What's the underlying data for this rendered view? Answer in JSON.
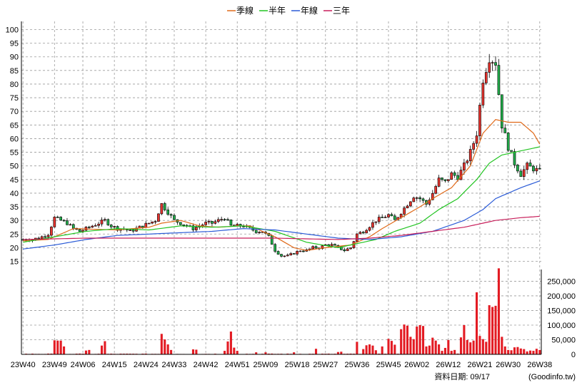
{
  "legend": [
    {
      "name": "季線",
      "color": "#e06a1a"
    },
    {
      "name": "半年",
      "color": "#22c422"
    },
    {
      "name": "年線",
      "color": "#2a5bd7"
    },
    {
      "name": "三年",
      "color": "#c81e5a"
    }
  ],
  "footer": {
    "date_label": "資料日期: 09/17",
    "source": "(Goodinfo.tw)"
  },
  "colors": {
    "up": "#e8332e",
    "down": "#22b14c",
    "volume": "#e31b23",
    "grid": "#9a9a9a"
  },
  "chart_data": {
    "type": "candlestick",
    "x_ticks": [
      "23W40",
      "23W49",
      "24W06",
      "24W15",
      "24W24",
      "24W33",
      "24W42",
      "24W51",
      "25W09",
      "25W18",
      "25W27",
      "25W36",
      "25W45",
      "26W02",
      "26W12",
      "26W21",
      "26W30",
      "26W38"
    ],
    "price_axis": {
      "range": [
        12,
        103
      ],
      "ticks": [
        15,
        20,
        25,
        30,
        35,
        40,
        45,
        50,
        55,
        60,
        65,
        70,
        75,
        80,
        85,
        90,
        95,
        100
      ],
      "grid": true
    },
    "volume_axis": {
      "range": [
        0,
        290000
      ],
      "ticks": [
        0,
        50000,
        100000,
        150000,
        200000,
        250000
      ],
      "tick_labels": [
        "0",
        "50,000",
        "100,000",
        "150,000",
        "200,000",
        "250,000"
      ]
    },
    "price_anchors": [
      [
        0,
        23
      ],
      [
        3,
        23
      ],
      [
        6,
        24
      ],
      [
        8,
        25
      ],
      [
        10,
        31
      ],
      [
        12,
        30
      ],
      [
        14,
        29
      ],
      [
        16,
        27
      ],
      [
        18,
        26
      ],
      [
        20,
        27
      ],
      [
        22,
        28
      ],
      [
        24,
        29
      ],
      [
        26,
        30
      ],
      [
        28,
        28
      ],
      [
        30,
        27
      ],
      [
        32,
        27
      ],
      [
        34,
        26
      ],
      [
        36,
        27
      ],
      [
        38,
        28
      ],
      [
        40,
        29
      ],
      [
        42,
        30
      ],
      [
        44,
        36
      ],
      [
        46,
        33
      ],
      [
        48,
        30
      ],
      [
        50,
        29
      ],
      [
        52,
        28
      ],
      [
        54,
        27
      ],
      [
        56,
        28
      ],
      [
        58,
        29
      ],
      [
        60,
        29
      ],
      [
        62,
        30
      ],
      [
        64,
        31
      ],
      [
        66,
        28
      ],
      [
        68,
        28
      ],
      [
        70,
        28
      ],
      [
        72,
        27
      ],
      [
        74,
        26
      ],
      [
        76,
        26
      ],
      [
        78,
        24
      ],
      [
        80,
        19
      ],
      [
        82,
        17
      ],
      [
        84,
        17
      ],
      [
        86,
        18
      ],
      [
        88,
        19
      ],
      [
        90,
        19
      ],
      [
        92,
        20
      ],
      [
        94,
        20
      ],
      [
        96,
        21
      ],
      [
        98,
        21
      ],
      [
        100,
        20
      ],
      [
        102,
        19
      ],
      [
        104,
        20
      ],
      [
        106,
        25
      ],
      [
        108,
        26
      ],
      [
        110,
        28
      ],
      [
        112,
        30
      ],
      [
        114,
        31
      ],
      [
        116,
        32
      ],
      [
        118,
        30
      ],
      [
        120,
        33
      ],
      [
        122,
        36
      ],
      [
        124,
        39
      ],
      [
        126,
        38
      ],
      [
        128,
        36
      ],
      [
        130,
        40
      ],
      [
        132,
        45
      ],
      [
        134,
        44
      ],
      [
        136,
        47
      ],
      [
        138,
        46
      ],
      [
        140,
        50
      ],
      [
        142,
        55
      ],
      [
        144,
        62
      ],
      [
        146,
        82
      ],
      [
        148,
        90
      ],
      [
        150,
        88
      ],
      [
        152,
        65
      ],
      [
        154,
        57
      ],
      [
        156,
        51
      ],
      [
        158,
        47
      ],
      [
        160,
        50
      ],
      [
        162,
        49
      ],
      [
        164,
        48
      ]
    ],
    "volume_bars": [
      [
        10,
        48000
      ],
      [
        11,
        47000
      ],
      [
        12,
        47000
      ],
      [
        13,
        27000
      ],
      [
        20,
        13000
      ],
      [
        21,
        15000
      ],
      [
        25,
        30000
      ],
      [
        26,
        45000
      ],
      [
        44,
        70000
      ],
      [
        45,
        51000
      ],
      [
        46,
        34000
      ],
      [
        47,
        15000
      ],
      [
        54,
        17000
      ],
      [
        55,
        16000
      ],
      [
        64,
        12000
      ],
      [
        65,
        44000
      ],
      [
        66,
        78000
      ],
      [
        67,
        23000
      ],
      [
        68,
        12000
      ],
      [
        74,
        7000
      ],
      [
        77,
        7000
      ],
      [
        86,
        7000
      ],
      [
        93,
        19000
      ],
      [
        100,
        8000
      ],
      [
        101,
        9000
      ],
      [
        106,
        43000
      ],
      [
        108,
        18000
      ],
      [
        109,
        31000
      ],
      [
        110,
        34000
      ],
      [
        111,
        30000
      ],
      [
        112,
        14000
      ],
      [
        114,
        27000
      ],
      [
        116,
        53000
      ],
      [
        117,
        46000
      ],
      [
        118,
        33000
      ],
      [
        120,
        86000
      ],
      [
        121,
        102000
      ],
      [
        122,
        98000
      ],
      [
        123,
        60000
      ],
      [
        124,
        52000
      ],
      [
        125,
        95000
      ],
      [
        126,
        100000
      ],
      [
        127,
        97000
      ],
      [
        128,
        27000
      ],
      [
        129,
        30000
      ],
      [
        130,
        57000
      ],
      [
        131,
        47000
      ],
      [
        132,
        34000
      ],
      [
        133,
        12000
      ],
      [
        134,
        22000
      ],
      [
        135,
        49000
      ],
      [
        136,
        12000
      ],
      [
        137,
        15000
      ],
      [
        139,
        58000
      ],
      [
        140,
        100000
      ],
      [
        141,
        49000
      ],
      [
        142,
        41000
      ],
      [
        143,
        47000
      ],
      [
        144,
        212000
      ],
      [
        145,
        63000
      ],
      [
        146,
        52000
      ],
      [
        147,
        43000
      ],
      [
        148,
        168000
      ],
      [
        149,
        162000
      ],
      [
        150,
        166000
      ],
      [
        151,
        294000
      ],
      [
        152,
        60000
      ],
      [
        153,
        27000
      ],
      [
        154,
        15000
      ],
      [
        155,
        14000
      ],
      [
        156,
        24000
      ],
      [
        157,
        25000
      ],
      [
        158,
        20000
      ],
      [
        159,
        18000
      ],
      [
        160,
        10000
      ],
      [
        161,
        13000
      ],
      [
        162,
        12000
      ],
      [
        163,
        19000
      ],
      [
        164,
        15000
      ]
    ],
    "ma_quarter": [
      [
        0,
        22.5
      ],
      [
        8,
        23
      ],
      [
        16,
        27
      ],
      [
        30,
        26.5
      ],
      [
        40,
        27.5
      ],
      [
        44,
        29
      ],
      [
        50,
        30
      ],
      [
        56,
        28
      ],
      [
        62,
        27.5
      ],
      [
        68,
        28
      ],
      [
        72,
        28
      ],
      [
        76,
        26
      ],
      [
        80,
        24
      ],
      [
        86,
        20
      ],
      [
        90,
        19
      ],
      [
        96,
        20
      ],
      [
        100,
        20.5
      ],
      [
        104,
        21
      ],
      [
        110,
        24
      ],
      [
        114,
        27
      ],
      [
        120,
        31
      ],
      [
        126,
        35
      ],
      [
        130,
        38
      ],
      [
        136,
        42
      ],
      [
        142,
        50
      ],
      [
        146,
        62
      ],
      [
        150,
        67
      ],
      [
        154,
        66
      ],
      [
        158,
        66
      ],
      [
        162,
        62
      ],
      [
        164,
        58
      ]
    ],
    "ma_half": [
      [
        0,
        22
      ],
      [
        10,
        24
      ],
      [
        20,
        26
      ],
      [
        30,
        27
      ],
      [
        40,
        26.5
      ],
      [
        50,
        28
      ],
      [
        60,
        27.5
      ],
      [
        70,
        28
      ],
      [
        80,
        26
      ],
      [
        90,
        22
      ],
      [
        100,
        20
      ],
      [
        104,
        21
      ],
      [
        112,
        23
      ],
      [
        118,
        26
      ],
      [
        126,
        29
      ],
      [
        132,
        34
      ],
      [
        138,
        38
      ],
      [
        144,
        45
      ],
      [
        148,
        51
      ],
      [
        152,
        54
      ],
      [
        156,
        55
      ],
      [
        160,
        56
      ],
      [
        164,
        57
      ]
    ],
    "ma_year": [
      [
        0,
        19.5
      ],
      [
        10,
        21
      ],
      [
        20,
        23
      ],
      [
        30,
        24.5
      ],
      [
        40,
        25
      ],
      [
        50,
        25.5
      ],
      [
        60,
        26
      ],
      [
        70,
        27
      ],
      [
        80,
        26.5
      ],
      [
        90,
        25
      ],
      [
        100,
        23.5
      ],
      [
        110,
        23
      ],
      [
        120,
        24
      ],
      [
        130,
        26
      ],
      [
        140,
        30
      ],
      [
        146,
        34
      ],
      [
        150,
        38
      ],
      [
        154,
        40
      ],
      [
        158,
        42
      ],
      [
        164,
        44.5
      ]
    ],
    "ma_3year": [
      [
        0,
        23
      ],
      [
        20,
        23.5
      ],
      [
        40,
        23.5
      ],
      [
        60,
        23.5
      ],
      [
        80,
        23.5
      ],
      [
        100,
        23
      ],
      [
        110,
        23.5
      ],
      [
        120,
        24.5
      ],
      [
        130,
        26
      ],
      [
        140,
        27.5
      ],
      [
        150,
        30
      ],
      [
        158,
        31
      ],
      [
        164,
        31.5
      ]
    ]
  }
}
